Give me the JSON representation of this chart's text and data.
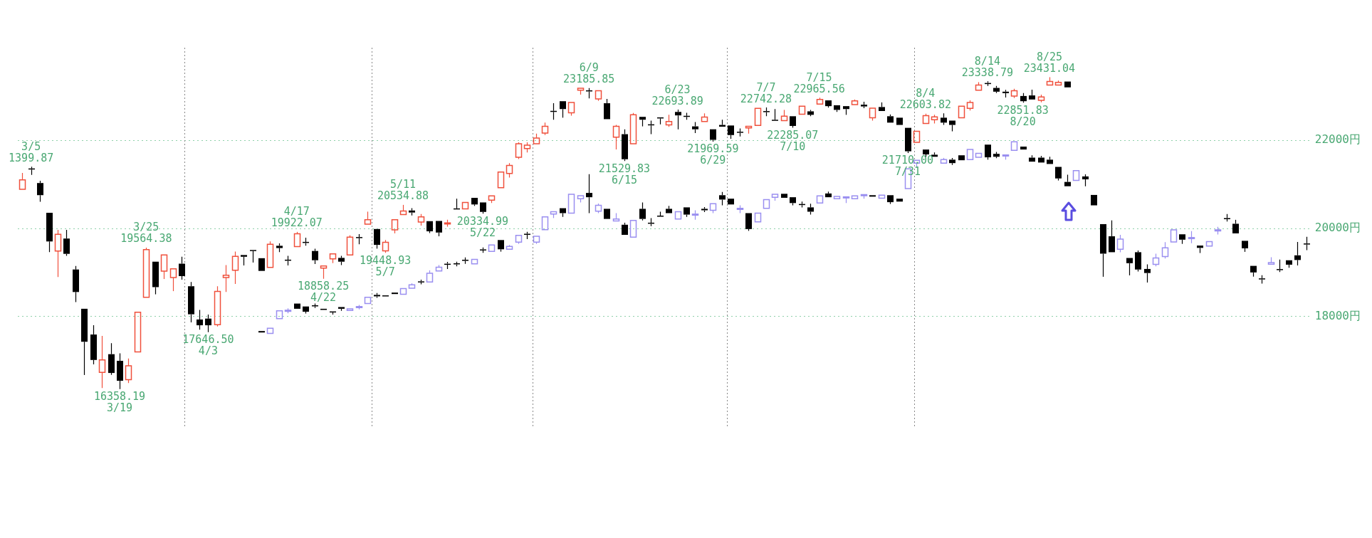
{
  "chart_data": {
    "type": "candlestick",
    "categories": [
      null,
      null,
      null,
      null,
      null,
      null,
      null,
      null,
      null,
      null,
      null,
      null,
      null,
      null,
      null,
      null,
      null,
      null,
      null,
      null,
      null,
      null,
      null,
      null,
      null,
      null,
      null,
      null,
      null,
      null,
      null,
      null,
      null,
      null,
      null,
      null,
      null,
      null,
      null,
      null,
      null,
      null,
      null,
      null,
      null,
      null,
      null,
      null,
      null,
      null,
      null,
      null,
      null,
      null,
      null,
      null,
      null,
      null,
      null,
      null,
      null,
      null,
      null,
      null,
      null,
      null,
      null,
      null,
      null,
      null,
      null,
      null,
      null,
      null,
      null,
      null,
      null,
      null,
      null,
      null,
      null,
      null,
      null,
      null,
      null,
      null,
      null,
      null,
      null,
      null,
      null,
      null,
      null,
      null,
      null,
      null,
      null,
      null,
      null,
      null,
      null,
      null,
      null,
      null,
      null,
      null,
      null,
      null,
      null,
      null,
      null,
      null,
      null,
      null,
      null,
      null,
      null,
      null,
      null,
      null,
      null,
      null,
      null,
      null,
      null,
      null,
      null,
      null,
      null,
      null,
      null,
      null,
      null,
      null,
      null,
      null,
      null,
      null,
      null,
      null,
      null,
      null,
      null,
      null,
      null,
      null
    ],
    "ylim": [
      15500,
      24100
    ],
    "yticks": [
      {
        "value": 18000,
        "label": "18000円"
      },
      {
        "value": 20000,
        "label": "20000円"
      },
      {
        "value": 22000,
        "label": "22000円"
      }
    ],
    "grid": "y",
    "series": [
      {
        "ohlc": [
          [
            20886,
            21259,
            20886,
            21102
          ],
          [
            21360,
            21399.87,
            21214,
            21338
          ],
          [
            21030,
            21082,
            20604,
            20755
          ],
          [
            20355,
            20355,
            19463,
            19705
          ],
          [
            19489,
            19968,
            18899,
            19869
          ],
          [
            19771,
            19968,
            19378,
            19424
          ],
          [
            19069,
            19148,
            18328,
            18558
          ],
          [
            18178,
            18178,
            16676,
            17430
          ],
          [
            17594,
            17804,
            16919,
            17017
          ],
          [
            16735,
            17561,
            16381,
            17017
          ],
          [
            17148,
            17397,
            16680,
            16722
          ],
          [
            16997,
            17168,
            16358.19,
            16545
          ],
          [
            16571,
            17050,
            16492,
            16886
          ],
          [
            17201,
            18099,
            17201,
            18099
          ],
          [
            18440,
            19564.38,
            18440,
            19520
          ],
          [
            19246,
            19246,
            18506,
            18669
          ],
          [
            19030,
            19397,
            18853,
            19397
          ],
          [
            18886,
            19083,
            18578,
            19083
          ],
          [
            19201,
            19358,
            18840,
            18919
          ],
          [
            18689,
            18787,
            17870,
            18053
          ],
          [
            17935,
            18152,
            17706,
            17804
          ],
          [
            17955,
            18047,
            17646.5,
            17804
          ],
          [
            17817,
            18689,
            17775,
            18571
          ],
          [
            18886,
            19168,
            18558,
            18938
          ],
          [
            19050,
            19476,
            18742,
            19365
          ],
          [
            19397,
            19397,
            19161,
            19358
          ],
          [
            19509,
            19509,
            19227,
            19489
          ],
          [
            19325,
            19325,
            19037,
            19037
          ],
          [
            19115,
            19706,
            19115,
            19640
          ],
          [
            19607,
            19660,
            19463,
            19555
          ],
          [
            19280,
            19378,
            19161,
            19279
          ],
          [
            19587,
            19922.07,
            19587,
            19880
          ],
          [
            19686,
            19791,
            19607,
            19680
          ],
          [
            19489,
            19541,
            19194,
            19279
          ],
          [
            19102,
            19148,
            18858.25,
            19148
          ],
          [
            19312,
            19424,
            19214,
            19424
          ],
          [
            19332,
            19378,
            19168,
            19246
          ],
          [
            19397,
            19845,
            19397,
            19804
          ],
          [
            19794,
            19870,
            19640,
            19791
          ],
          [
            20099,
            20381,
            20099,
            20197
          ],
          [
            19987,
            19987,
            19542,
            19627
          ],
          [
            19490,
            19738,
            19448.93,
            19686
          ],
          [
            19968,
            20197,
            19889,
            20197
          ],
          [
            20315,
            20534.88,
            20315,
            20394
          ],
          [
            20407,
            20460,
            20296,
            20361
          ],
          [
            20145,
            20329,
            20066,
            20263
          ],
          [
            20165,
            20165,
            19895,
            19935
          ],
          [
            20170,
            20170,
            19822,
            19907
          ],
          [
            20110,
            20196,
            20039,
            20117
          ],
          [
            20445,
            20675,
            20440,
            20440
          ],
          [
            20445,
            20617,
            20445,
            20590
          ],
          [
            20694,
            20694,
            20511,
            20544
          ],
          [
            20590,
            20590,
            20334.99,
            20375
          ],
          [
            20642,
            20740,
            20577,
            20740
          ],
          [
            20924,
            21278,
            20924,
            21278
          ],
          [
            21246,
            21482,
            21154,
            21429
          ],
          [
            21613,
            21954,
            21574,
            21921
          ],
          [
            21810,
            21954,
            21724,
            21888
          ],
          [
            21921,
            22151,
            21921,
            22052
          ],
          [
            22164,
            22400,
            22118,
            22315
          ],
          [
            22660,
            22840,
            22466,
            22650
          ],
          [
            22886,
            22886,
            22512,
            22708
          ],
          [
            22623,
            22859,
            22558,
            22859
          ],
          [
            23135,
            23181,
            23036,
            23181
          ],
          [
            23125,
            23185.85,
            22951,
            23115
          ],
          [
            22938,
            23122,
            22895,
            23122
          ],
          [
            22840,
            22938,
            22479,
            22479
          ],
          [
            22072,
            22348,
            21790,
            22315
          ],
          [
            22138,
            22249,
            21529.83,
            21570
          ],
          [
            21921,
            22620,
            21921,
            22577
          ],
          [
            22531,
            22531,
            22315,
            22466
          ],
          [
            22352,
            22446,
            22138,
            22348
          ],
          [
            22512,
            22512,
            22361,
            22502
          ],
          [
            22348,
            22577,
            22305,
            22426
          ],
          [
            22643,
            22693.89,
            22249,
            22564
          ],
          [
            22545,
            22623,
            22466,
            22540
          ],
          [
            22315,
            22413,
            22164,
            22249
          ],
          [
            22426,
            22610,
            22426,
            22525
          ],
          [
            22249,
            22249,
            21969.59,
            22010
          ],
          [
            22348,
            22466,
            22282,
            22308
          ],
          [
            22335,
            22335,
            22033,
            22118
          ],
          [
            22183,
            22269,
            22085,
            22180
          ],
          [
            22282,
            22315,
            22151,
            22315
          ],
          [
            22335,
            22722,
            22335,
            22722
          ],
          [
            22660,
            22742.28,
            22545,
            22640
          ],
          [
            22460,
            22708,
            22446,
            22446
          ],
          [
            22446,
            22689,
            22446,
            22545
          ],
          [
            22545,
            22545,
            22285.07,
            22325
          ],
          [
            22590,
            22774,
            22590,
            22774
          ],
          [
            22656,
            22689,
            22545,
            22577
          ],
          [
            22820,
            22965.56,
            22820,
            22925
          ],
          [
            22905,
            22905,
            22741,
            22774
          ],
          [
            22794,
            22794,
            22643,
            22689
          ],
          [
            22774,
            22774,
            22577,
            22708
          ],
          [
            22807,
            22925,
            22807,
            22892
          ],
          [
            22807,
            22872,
            22728,
            22767
          ],
          [
            22512,
            22728,
            22446,
            22728
          ],
          [
            22754,
            22859,
            22643,
            22663
          ],
          [
            22545,
            22585,
            22400,
            22400
          ],
          [
            22512,
            22512,
            22348,
            22348
          ],
          [
            22282,
            22282,
            21710,
            21750
          ],
          [
            21954,
            22203,
            21954,
            22203
          ],
          [
            22380,
            22603.82,
            22380,
            22560
          ],
          [
            22466,
            22577,
            22380,
            22531
          ],
          [
            22512,
            22610,
            22348,
            22400
          ],
          [
            22446,
            22446,
            22203,
            22348
          ],
          [
            22512,
            22774,
            22512,
            22774
          ],
          [
            22722,
            22905,
            22676,
            22859
          ],
          [
            23135,
            23318,
            23135,
            23253
          ],
          [
            23295,
            23338.79,
            23233,
            23279
          ],
          [
            23187,
            23233,
            23069,
            23102
          ],
          [
            23102,
            23142,
            22971,
            23069
          ],
          [
            23004,
            23168,
            22960,
            23122
          ],
          [
            23004,
            23069,
            22851.83,
            22886
          ],
          [
            23017,
            23148,
            22925,
            22925
          ],
          [
            22905,
            23036,
            22860,
            22984
          ],
          [
            23253,
            23431.04,
            23253,
            23332
          ],
          [
            23253,
            23355,
            23253,
            23312
          ],
          [
            23332,
            23332,
            23200,
            23200
          ],
          null,
          null,
          null,
          null,
          null,
          null,
          null,
          null,
          null,
          null,
          null,
          null,
          null,
          null,
          null,
          null,
          null,
          null,
          null,
          null,
          null,
          null,
          null,
          null,
          null,
          null,
          null
        ],
        "colors": [
          "#f0503c",
          "#000000",
          "#000000",
          "#000000",
          "#f0503c",
          "#000000",
          "#000000",
          "#000000",
          "#000000",
          "#f0503c",
          "#000000",
          "#000000",
          "#f0503c",
          "#f0503c",
          "#f0503c",
          "#000000",
          "#f0503c",
          "#f0503c",
          "#000000",
          "#000000",
          "#000000",
          "#000000",
          "#f0503c",
          "#f0503c",
          "#f0503c",
          "#000000",
          "#000000",
          "#000000",
          "#f0503c",
          "#000000",
          "#000000",
          "#f0503c",
          "#000000",
          "#000000",
          "#f0503c",
          "#f0503c",
          "#000000",
          "#f0503c",
          "#000000",
          "#f0503c",
          "#000000",
          "#f0503c",
          "#f0503c",
          "#f0503c",
          "#000000",
          "#f0503c",
          "#000000",
          "#000000",
          "#f0503c",
          "#000000",
          "#f0503c",
          "#000000",
          "#000000",
          "#f0503c",
          "#f0503c",
          "#f0503c",
          "#f0503c",
          "#f0503c",
          "#f0503c",
          "#f0503c",
          "#000000",
          "#000000",
          "#f0503c",
          "#f0503c",
          "#000000",
          "#f0503c",
          "#000000",
          "#f0503c",
          "#000000",
          "#f0503c",
          "#000000",
          "#000000",
          "#000000",
          "#f0503c",
          "#000000",
          "#000000",
          "#000000",
          "#f0503c",
          "#000000",
          "#000000",
          "#000000",
          "#000000",
          "#f0503c",
          "#f0503c",
          "#000000",
          "#000000",
          "#f0503c",
          "#000000",
          "#f0503c",
          "#000000",
          "#f0503c",
          "#000000",
          "#000000",
          "#000000",
          "#f0503c",
          "#000000",
          "#f0503c",
          "#000000",
          "#000000",
          "#000000",
          "#000000",
          "#f0503c",
          "#f0503c",
          "#f0503c",
          "#000000",
          "#000000",
          "#f0503c",
          "#f0503c",
          "#f0503c",
          "#000000",
          "#000000",
          "#000000",
          "#f0503c",
          "#000000",
          "#000000",
          "#f0503c",
          "#f0503c",
          "#f0503c",
          "#000000",
          null,
          null,
          null,
          null,
          null,
          null,
          null,
          null,
          null,
          null,
          null,
          null,
          null,
          null,
          null,
          null,
          null,
          null,
          null,
          null,
          null,
          null,
          null,
          null,
          null,
          null,
          null
        ]
      },
      {
        "ohlc": [
          null,
          null,
          null,
          null,
          null,
          null,
          null,
          null,
          null,
          null,
          null,
          null,
          null,
          null,
          null,
          null,
          null,
          null,
          null,
          null,
          null,
          null,
          null,
          null,
          null,
          null,
          null,
          [
            17673,
            17673,
            17640,
            17640
          ],
          [
            17620,
            17738,
            17620,
            17738
          ],
          [
            17955,
            18132,
            17955,
            18132
          ],
          [
            18130,
            18190,
            18075,
            18135
          ],
          [
            18296,
            18296,
            18178,
            18178
          ],
          [
            18230,
            18230,
            18070,
            18112
          ],
          [
            18250,
            18296,
            18198,
            18240
          ],
          [
            18178,
            18178,
            18132,
            18152
          ],
          [
            18112,
            18112,
            18047,
            18100
          ],
          [
            18217,
            18217,
            18132,
            18178
          ],
          [
            18138,
            18190,
            18138,
            18178
          ],
          [
            18215,
            18265,
            18165,
            18217
          ],
          [
            18296,
            18440,
            18296,
            18440
          ],
          [
            18493,
            18535,
            18427,
            18460
          ],
          [
            18480,
            18480,
            18460,
            18460
          ],
          [
            18545,
            18545,
            18512,
            18512
          ],
          [
            18506,
            18637,
            18506,
            18637
          ],
          [
            18643,
            18755,
            18643,
            18722
          ],
          [
            18790,
            18840,
            18735,
            18785
          ],
          [
            18787,
            19050,
            18787,
            18984
          ],
          [
            19035,
            19170,
            19035,
            19120
          ],
          [
            19190,
            19240,
            19081,
            19185
          ],
          [
            19200,
            19245,
            19140,
            19195
          ],
          [
            19280,
            19343,
            19199,
            19275
          ],
          [
            19199,
            19297,
            19199,
            19297
          ],
          [
            19515,
            19570,
            19448,
            19510
          ],
          [
            19481,
            19625,
            19481,
            19625
          ],
          [
            19737,
            19737,
            19474,
            19527
          ],
          [
            19527,
            19625,
            19527,
            19592
          ],
          [
            19691,
            19842,
            19650,
            19842
          ],
          [
            19870,
            19925,
            19757,
            19865
          ],
          [
            19691,
            19822,
            19650,
            19822
          ],
          [
            19973,
            20262,
            19973,
            20262
          ],
          [
            20328,
            20380,
            20236,
            20380
          ],
          [
            20459,
            20459,
            20262,
            20347
          ],
          [
            20347,
            20773,
            20347,
            20773
          ],
          [
            20675,
            20741,
            20590,
            20741
          ],
          [
            20806,
            21232,
            20347,
            20708
          ],
          [
            20393,
            20565,
            20347,
            20524
          ],
          [
            20445,
            20445,
            20216,
            20216
          ],
          [
            20170,
            20347,
            20170,
            20216
          ],
          [
            20084,
            20130,
            19855,
            19855
          ],
          [
            19803,
            20183,
            19803,
            20183
          ],
          [
            20445,
            20590,
            20183,
            20216
          ],
          [
            20120,
            20235,
            20052,
            20117
          ],
          [
            20282,
            20380,
            20275,
            20275
          ],
          [
            20445,
            20511,
            20347,
            20347
          ],
          [
            20216,
            20380,
            20216,
            20380
          ],
          [
            20478,
            20478,
            20262,
            20314
          ],
          [
            20312,
            20413,
            20196,
            20314
          ],
          [
            20445,
            20485,
            20370,
            20412
          ],
          [
            20412,
            20563,
            20347,
            20563
          ],
          [
            20754,
            20826,
            20524,
            20655
          ],
          [
            20675,
            20675,
            20544,
            20544
          ],
          [
            20443,
            20524,
            20347,
            20445
          ],
          [
            20347,
            20347,
            19945,
            19986
          ],
          [
            20150,
            20347,
            20150,
            20347
          ],
          [
            20458,
            20655,
            20458,
            20655
          ],
          [
            20708,
            20773,
            20629,
            20773
          ],
          [
            20786,
            20786,
            20695,
            20695
          ],
          [
            20708,
            20708,
            20524,
            20576
          ],
          [
            20545,
            20609,
            20478,
            20540
          ],
          [
            20478,
            20563,
            20314,
            20380
          ],
          [
            20576,
            20740,
            20576,
            20740
          ],
          [
            20793,
            20835,
            20708,
            20708
          ],
          [
            20675,
            20727,
            20675,
            20727
          ],
          [
            20700,
            20708,
            20576,
            20708
          ],
          [
            20675,
            20740,
            20675,
            20740
          ],
          [
            20750,
            20760,
            20675,
            20760
          ],
          [
            20754,
            20754,
            20721,
            20721
          ],
          [
            20688,
            20754,
            20688,
            20754
          ],
          [
            20754,
            20754,
            20555,
            20596
          ],
          [
            20675,
            20675,
            20609,
            20609
          ],
          [
            20904,
            21350,
            20904,
            21350
          ],
          [
            21482,
            21547,
            21396,
            21547
          ],
          [
            21790,
            21790,
            21626,
            21679
          ],
          [
            21672,
            21724,
            21626,
            21626
          ],
          [
            21482,
            21600,
            21482,
            21560
          ],
          [
            21560,
            21600,
            21442,
            21482
          ],
          [
            21659,
            21659,
            21547,
            21547
          ],
          [
            21560,
            21790,
            21560,
            21790
          ],
          [
            21613,
            21705,
            21613,
            21705
          ],
          [
            21901,
            21901,
            21560,
            21613
          ],
          [
            21692,
            21735,
            21593,
            21626
          ],
          [
            21650,
            21659,
            21560,
            21659
          ],
          [
            21770,
            21967,
            21770,
            21967
          ],
          [
            21856,
            21856,
            21790,
            21790
          ],
          [
            21606,
            21659,
            21515,
            21515
          ],
          [
            21606,
            21645,
            21495,
            21495
          ],
          [
            21560,
            21626,
            21462,
            21462
          ],
          [
            21396,
            21396,
            21088,
            21134
          ],
          [
            21055,
            21219,
            20957,
            20957
          ],
          [
            21088,
            21311,
            21088,
            21311
          ],
          [
            21180,
            21225,
            20957,
            21114
          ],
          [
            20760,
            20760,
            20524,
            20524
          ],
          [
            20098,
            20098,
            18904,
            19428
          ],
          [
            19822,
            20183,
            19461,
            19461
          ],
          [
            19527,
            19855,
            19461,
            19757
          ],
          [
            19330,
            19330,
            18936,
            19212
          ],
          [
            19461,
            19500,
            19025,
            19068
          ],
          [
            19081,
            19186,
            18772,
            18989
          ],
          [
            19186,
            19429,
            19140,
            19330
          ],
          [
            19363,
            19691,
            19320,
            19560
          ],
          [
            19692,
            19968,
            19692,
            19968
          ],
          [
            19867,
            19867,
            19650,
            19745
          ],
          [
            19780,
            19941,
            19665,
            19782
          ],
          [
            19612,
            19612,
            19443,
            19559
          ],
          [
            19602,
            19703,
            19602,
            19703
          ],
          [
            19955,
            20037,
            19862,
            19957
          ],
          [
            20225,
            20329,
            20159,
            20220
          ],
          [
            20106,
            20196,
            19888,
            19888
          ],
          [
            19719,
            19719,
            19469,
            19549
          ],
          [
            19151,
            19151,
            18907,
            19002
          ],
          [
            18857,
            18939,
            18748,
            18854
          ],
          [
            19188,
            19347,
            19188,
            19225
          ],
          [
            19068,
            19294,
            19013,
            19065
          ],
          [
            19278,
            19278,
            19108,
            19178
          ],
          [
            19390,
            19692,
            19161,
            19284
          ],
          [
            19650,
            19809,
            19507,
            19645
          ]
        ],
        "colors": [
          null,
          null,
          null,
          null,
          null,
          null,
          null,
          null,
          null,
          null,
          null,
          null,
          null,
          null,
          null,
          null,
          null,
          null,
          null,
          null,
          null,
          null,
          null,
          null,
          null,
          null,
          null,
          "#000000",
          "#9a8ff0",
          "#9a8ff0",
          "#9a8ff0",
          "#000000",
          "#000000",
          "#000000",
          "#000000",
          "#000000",
          "#000000",
          "#9a8ff0",
          "#9a8ff0",
          "#9a8ff0",
          "#000000",
          "#000000",
          "#000000",
          "#9a8ff0",
          "#9a8ff0",
          "#000000",
          "#9a8ff0",
          "#9a8ff0",
          "#000000",
          "#000000",
          "#000000",
          "#9a8ff0",
          "#000000",
          "#9a8ff0",
          "#000000",
          "#9a8ff0",
          "#9a8ff0",
          "#000000",
          "#9a8ff0",
          "#9a8ff0",
          "#9a8ff0",
          "#000000",
          "#9a8ff0",
          "#9a8ff0",
          "#000000",
          "#9a8ff0",
          "#000000",
          "#9a8ff0",
          "#000000",
          "#9a8ff0",
          "#000000",
          "#000000",
          "#000000",
          "#000000",
          "#9a8ff0",
          "#000000",
          "#9a8ff0",
          "#000000",
          "#9a8ff0",
          "#000000",
          "#000000",
          "#9a8ff0",
          "#000000",
          "#9a8ff0",
          "#9a8ff0",
          "#9a8ff0",
          "#000000",
          "#000000",
          "#000000",
          "#000000",
          "#9a8ff0",
          "#000000",
          "#9a8ff0",
          "#9a8ff0",
          "#9a8ff0",
          "#9a8ff0",
          "#000000",
          "#9a8ff0",
          "#000000",
          "#000000",
          "#9a8ff0",
          "#9a8ff0",
          "#000000",
          "#000000",
          "#9a8ff0",
          "#000000",
          "#000000",
          "#9a8ff0",
          "#9a8ff0",
          "#000000",
          "#000000",
          "#9a8ff0",
          "#9a8ff0",
          "#000000",
          "#000000",
          "#000000",
          "#000000",
          "#000000",
          "#000000",
          "#9a8ff0",
          "#000000",
          "#000000",
          "#000000",
          "#000000",
          "#9a8ff0",
          "#000000",
          "#000000",
          "#000000",
          "#9a8ff0",
          "#9a8ff0",
          "#9a8ff0",
          "#000000",
          "#9a8ff0",
          "#000000",
          "#9a8ff0",
          "#9a8ff0",
          "#000000",
          "#000000",
          "#000000",
          "#000000",
          "#000000",
          "#9a8ff0",
          "#000000",
          "#000000",
          "#000000",
          "#000000"
        ]
      }
    ],
    "annotations": [
      {
        "text": "3/5\n1399.87",
        "y": 21399.87
      },
      {
        "text": "16358.19\n3/19",
        "y": 16358.19
      },
      {
        "text": "3/25\n19564.38",
        "y": 19564.38
      },
      {
        "text": "17646.50\n4/3",
        "y": 17646.5
      },
      {
        "text": "4/17\n19922.07",
        "y": 19922.07
      },
      {
        "text": "18858.25\n4/22",
        "y": 18858.25
      },
      {
        "text": "19448.93\n5/7",
        "y": 19448.93
      },
      {
        "text": "5/11\n20534.88",
        "y": 20534.88
      },
      {
        "text": "20334.99\n5/22",
        "y": 20334.99
      },
      {
        "text": "6/9\n23185.85",
        "y": 23185.85
      },
      {
        "text": "21529.83\n6/15",
        "y": 21529.83
      },
      {
        "text": "6/23\n22693.89",
        "y": 22693.89
      },
      {
        "text": "21969.59\n6/29",
        "y": 21969.59
      },
      {
        "text": "7/7\n22742.28",
        "y": 22742.28
      },
      {
        "text": "22285.07\n7/10",
        "y": 22285.07
      },
      {
        "text": "7/15\n22965.56",
        "y": 22965.56
      },
      {
        "text": "21710.00\n7/31",
        "y": 21710
      },
      {
        "text": "8/4\n22603.82",
        "y": 22603.82
      },
      {
        "text": "8/14\n23338.79",
        "y": 23338.79
      },
      {
        "text": "22851.83\n8/20",
        "y": 22851.83
      },
      {
        "text": "8/25\n23431.04",
        "y": 23431.04
      }
    ]
  }
}
